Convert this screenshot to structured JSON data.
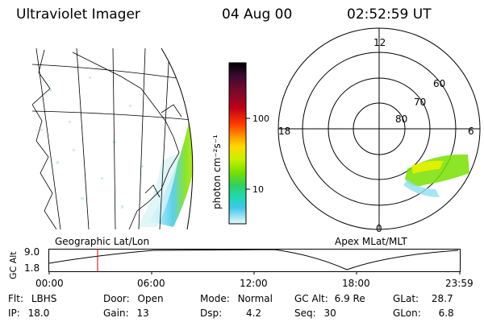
{
  "header": {
    "instrument": "Ultraviolet Imager",
    "date": "04 Aug 00",
    "time": "02:52:59 UT"
  },
  "left_panel": {
    "label": "Geographic Lat/Lon"
  },
  "right_panel": {
    "label": "Apex MLat/MLT",
    "mlt_labels": {
      "top": "12",
      "left": "18",
      "right": "6",
      "bottom": "0"
    },
    "lat_labels": [
      "60",
      "70",
      "80"
    ]
  },
  "colorbar": {
    "unit_label": "photon cm⁻²s⁻¹",
    "ticks": [
      "100",
      "10"
    ],
    "colors": [
      "#000000",
      "#3a0a30",
      "#7a0a2a",
      "#c0001a",
      "#ff3a00",
      "#ff9a00",
      "#ffd800",
      "#c8f000",
      "#78e000",
      "#30d060",
      "#20d8b0",
      "#40c8e8",
      "#90e0f0",
      "#d8f4f8"
    ]
  },
  "altitude_plot": {
    "axis_title": "GC Alt",
    "y_ticks": [
      "9.0",
      "1.8"
    ],
    "x_ticks": [
      "00:00",
      "06:00",
      "12:00",
      "18:00",
      "23:59"
    ]
  },
  "status": {
    "filter": {
      "label": "Flt:",
      "value": "LBHS"
    },
    "ip": {
      "label": "IP:",
      "value": "18.0"
    },
    "door": {
      "label": "Door:",
      "value": "Open"
    },
    "gain": {
      "label": "Gain:",
      "value": "13"
    },
    "mode": {
      "label": "Mode:",
      "value": "Normal"
    },
    "dsp": {
      "label": "Dsp:",
      "value": "4.2"
    },
    "gc_alt": {
      "label": "GC Alt:",
      "value": "6.9 Re"
    },
    "seq": {
      "label": "Seq:",
      "value": "30"
    },
    "glat": {
      "label": "GLat:",
      "value": "28.7"
    },
    "glon": {
      "label": "GLon:",
      "value": "6.8"
    }
  }
}
